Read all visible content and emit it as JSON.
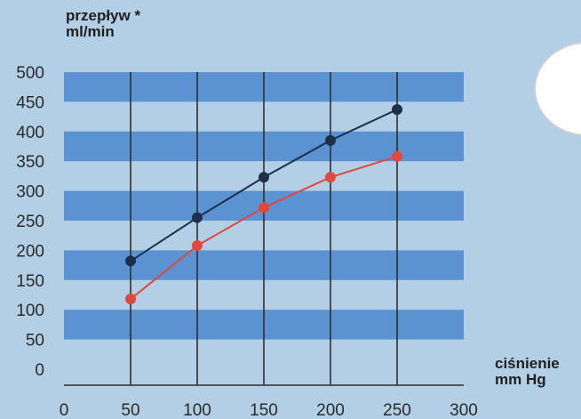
{
  "chart_data": {
    "type": "line",
    "title_line1": "przepływ *",
    "title_line2": "ml/min",
    "xlabel_line1": "ciśnienie",
    "xlabel_line2": "mm Hg",
    "x_ticks": [
      0,
      50,
      100,
      150,
      200,
      250,
      300
    ],
    "y_ticks": [
      0,
      50,
      100,
      150,
      200,
      250,
      300,
      350,
      400,
      450,
      500
    ],
    "xlim": [
      0,
      300
    ],
    "ylim": [
      0,
      500
    ],
    "grid": "vertical lines at x ticks, horizontal alternating bands",
    "series": [
      {
        "color": "#1e2f4a",
        "x": [
          50,
          100,
          150,
          200,
          250
        ],
        "y": [
          182,
          255,
          323,
          385,
          437
        ]
      },
      {
        "color": "#e0483e",
        "x": [
          50,
          100,
          150,
          200,
          250
        ],
        "y": [
          118,
          208,
          272,
          323,
          358
        ]
      }
    ]
  },
  "colors": {
    "background": "#b3cfe6",
    "band": "#5b93d2",
    "grid_line": "#2d2d2d"
  }
}
